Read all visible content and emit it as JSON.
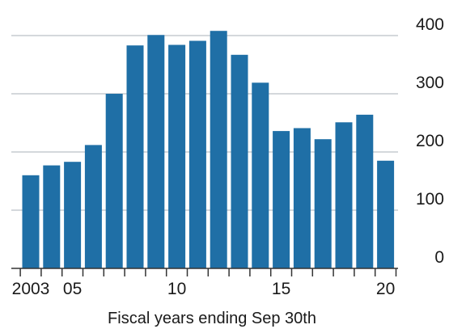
{
  "chart_data": {
    "type": "bar",
    "title": "",
    "xlabel": "Fiscal years ending Sep 30th",
    "ylabel": "",
    "categories": [
      "2003",
      "2004",
      "2005",
      "2006",
      "2007",
      "2008",
      "2009",
      "2010",
      "2011",
      "2012",
      "2013",
      "2014",
      "2015",
      "2016",
      "2017",
      "2018",
      "2019",
      "2020"
    ],
    "values": [
      160,
      177,
      183,
      212,
      300,
      383,
      401,
      384,
      391,
      408,
      367,
      319,
      236,
      241,
      222,
      251,
      264,
      185
    ],
    "ylim": [
      0,
      420
    ],
    "yticks": [
      0,
      100,
      200,
      300,
      400
    ],
    "ytick_labels": [
      "0",
      "100",
      "200",
      "300",
      "400"
    ],
    "xtick_labels": [
      {
        "category": "2003",
        "label": "2003"
      },
      {
        "category": "2005",
        "label": "05"
      },
      {
        "category": "2010",
        "label": "10"
      },
      {
        "category": "2015",
        "label": "15"
      },
      {
        "category": "2020",
        "label": "20"
      }
    ],
    "grid": true,
    "y_axis_side": "right",
    "bar_color": "#1f6fa6",
    "grid_color": "#c5cbd1",
    "axis_color": "#333333"
  }
}
